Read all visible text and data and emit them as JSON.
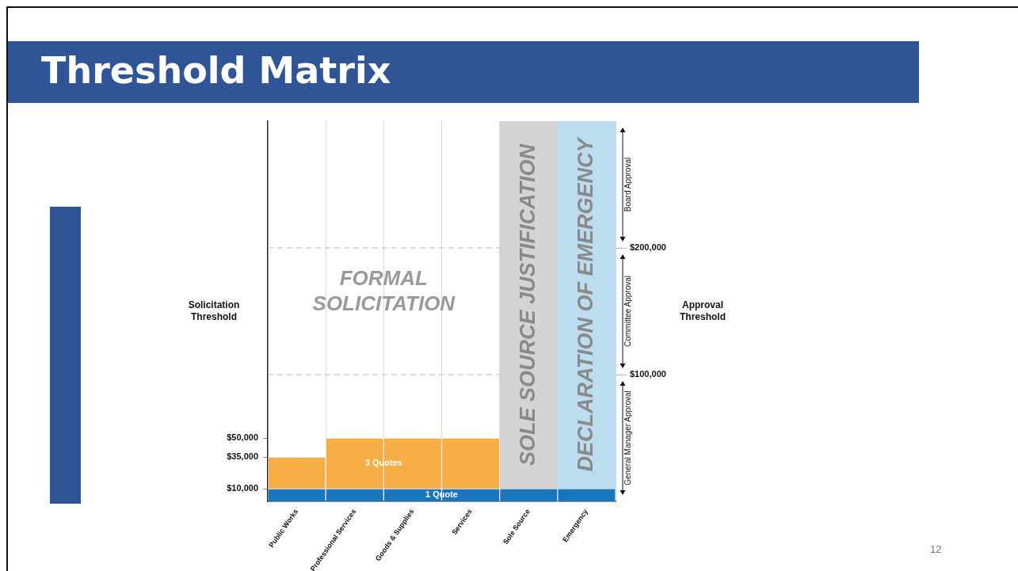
{
  "chart_data": {
    "type": "bar",
    "title": "Threshold Matrix",
    "ylabel": "Solicitation Threshold",
    "y2label": "Approval Threshold",
    "categories": [
      "Public Works",
      "Professional Services",
      "Goods & Supplies",
      "Services",
      "Sole Source",
      "Emergency"
    ],
    "series": [
      {
        "name": "1 Quote",
        "color": "#1a76bc",
        "values": [
          10000,
          10000,
          10000,
          10000,
          10000,
          10000
        ]
      },
      {
        "name": "3 Quotes",
        "color": "#f7ae45",
        "values": [
          25000,
          40000,
          40000,
          40000,
          null,
          null
        ]
      }
    ],
    "stacked": true,
    "ylim": [
      0,
      300000
    ],
    "yticks": [
      {
        "value": 10000,
        "label": "$10,000"
      },
      {
        "value": 35000,
        "label": "$35,000"
      },
      {
        "value": 50000,
        "label": "$50,000"
      }
    ],
    "y2lim": [
      0,
      300000
    ],
    "y2ticks": [
      {
        "value": 100000,
        "label": "$100,000"
      },
      {
        "value": 200000,
        "label": "$200,000"
      }
    ],
    "ref_lines": [
      {
        "axis": "y2",
        "value": 100000,
        "line_style": "dashed",
        "color": "#bbbbbb"
      },
      {
        "axis": "y2",
        "value": 200000,
        "line_style": "dashed",
        "color": "#bbbbbb"
      }
    ],
    "annotations": [
      "FORMAL SOLICITATION",
      "12",
      "General Manager Approval",
      "Committee Approval",
      "Board Approval"
    ],
    "bands": [
      {
        "axis": "x",
        "from": "Sole Source",
        "to": "Sole Source",
        "label": "SOLE SOURCE JUSTIFICATION",
        "color": "#d4d4d4"
      },
      {
        "axis": "x",
        "from": "Emergency",
        "to": "Emergency",
        "label": "DECLARATION OF EMERGENCY",
        "color": "#bcdcf0"
      }
    ],
    "grid": "x",
    "legend": false
  }
}
